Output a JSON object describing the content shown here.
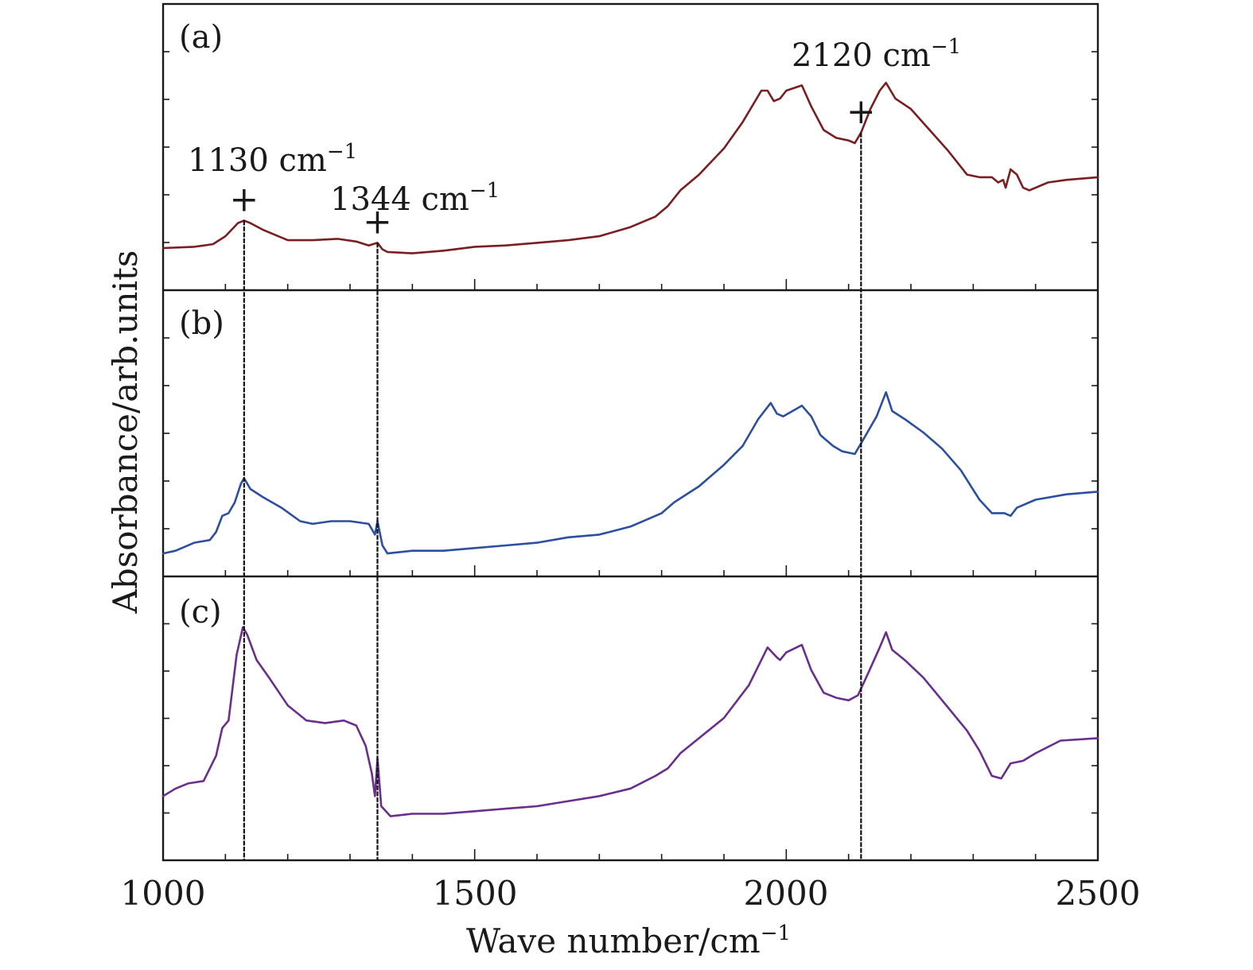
{
  "chart_data": {
    "type": "line",
    "xlabel": "Wave number/cm",
    "xlabel_superscript": "−1",
    "ylabel": "Absorbance/arb.units",
    "xlim": [
      1000,
      2500
    ],
    "x_ticks": [
      "1000",
      "1500",
      "2000",
      "2500"
    ],
    "panels": [
      {
        "label": "(a)",
        "name": "a",
        "color": "#7a1e22",
        "ylim": [
          0,
          1
        ],
        "points": [
          [
            1000,
            0.1
          ],
          [
            1050,
            0.105
          ],
          [
            1080,
            0.115
          ],
          [
            1090,
            0.13
          ],
          [
            1100,
            0.145
          ],
          [
            1110,
            0.17
          ],
          [
            1120,
            0.195
          ],
          [
            1130,
            0.205
          ],
          [
            1140,
            0.195
          ],
          [
            1160,
            0.17
          ],
          [
            1200,
            0.13
          ],
          [
            1240,
            0.13
          ],
          [
            1280,
            0.135
          ],
          [
            1310,
            0.125
          ],
          [
            1330,
            0.11
          ],
          [
            1344,
            0.12
          ],
          [
            1352,
            0.095
          ],
          [
            1360,
            0.085
          ],
          [
            1400,
            0.08
          ],
          [
            1450,
            0.09
          ],
          [
            1500,
            0.105
          ],
          [
            1550,
            0.11
          ],
          [
            1600,
            0.12
          ],
          [
            1650,
            0.13
          ],
          [
            1700,
            0.145
          ],
          [
            1750,
            0.18
          ],
          [
            1790,
            0.22
          ],
          [
            1810,
            0.26
          ],
          [
            1830,
            0.32
          ],
          [
            1860,
            0.38
          ],
          [
            1900,
            0.48
          ],
          [
            1930,
            0.58
          ],
          [
            1960,
            0.7
          ],
          [
            1970,
            0.7
          ],
          [
            1980,
            0.66
          ],
          [
            1990,
            0.67
          ],
          [
            2000,
            0.7
          ],
          [
            2025,
            0.72
          ],
          [
            2040,
            0.64
          ],
          [
            2060,
            0.55
          ],
          [
            2080,
            0.52
          ],
          [
            2100,
            0.51
          ],
          [
            2110,
            0.5
          ],
          [
            2120,
            0.54
          ],
          [
            2135,
            0.63
          ],
          [
            2150,
            0.7
          ],
          [
            2160,
            0.73
          ],
          [
            2175,
            0.67
          ],
          [
            2200,
            0.63
          ],
          [
            2230,
            0.55
          ],
          [
            2260,
            0.47
          ],
          [
            2290,
            0.38
          ],
          [
            2310,
            0.37
          ],
          [
            2330,
            0.37
          ],
          [
            2340,
            0.35
          ],
          [
            2348,
            0.36
          ],
          [
            2352,
            0.33
          ],
          [
            2360,
            0.4
          ],
          [
            2370,
            0.38
          ],
          [
            2380,
            0.33
          ],
          [
            2390,
            0.32
          ],
          [
            2420,
            0.35
          ],
          [
            2450,
            0.36
          ],
          [
            2500,
            0.37
          ]
        ]
      },
      {
        "label": "(b)",
        "name": "b",
        "color": "#2c4fa0",
        "ylim": [
          0,
          1
        ],
        "points": [
          [
            1000,
            0.05
          ],
          [
            1020,
            0.06
          ],
          [
            1050,
            0.09
          ],
          [
            1075,
            0.1
          ],
          [
            1085,
            0.13
          ],
          [
            1095,
            0.19
          ],
          [
            1105,
            0.2
          ],
          [
            1115,
            0.24
          ],
          [
            1125,
            0.31
          ],
          [
            1130,
            0.33
          ],
          [
            1140,
            0.29
          ],
          [
            1160,
            0.26
          ],
          [
            1190,
            0.22
          ],
          [
            1220,
            0.17
          ],
          [
            1240,
            0.16
          ],
          [
            1270,
            0.17
          ],
          [
            1300,
            0.17
          ],
          [
            1330,
            0.16
          ],
          [
            1340,
            0.12
          ],
          [
            1344,
            0.17
          ],
          [
            1352,
            0.08
          ],
          [
            1360,
            0.05
          ],
          [
            1400,
            0.06
          ],
          [
            1450,
            0.06
          ],
          [
            1500,
            0.07
          ],
          [
            1550,
            0.08
          ],
          [
            1600,
            0.09
          ],
          [
            1650,
            0.11
          ],
          [
            1700,
            0.12
          ],
          [
            1750,
            0.15
          ],
          [
            1800,
            0.2
          ],
          [
            1820,
            0.24
          ],
          [
            1860,
            0.3
          ],
          [
            1900,
            0.38
          ],
          [
            1930,
            0.45
          ],
          [
            1955,
            0.55
          ],
          [
            1975,
            0.61
          ],
          [
            1985,
            0.57
          ],
          [
            1995,
            0.56
          ],
          [
            2010,
            0.58
          ],
          [
            2025,
            0.6
          ],
          [
            2040,
            0.56
          ],
          [
            2055,
            0.49
          ],
          [
            2075,
            0.45
          ],
          [
            2090,
            0.43
          ],
          [
            2110,
            0.42
          ],
          [
            2125,
            0.48
          ],
          [
            2145,
            0.56
          ],
          [
            2160,
            0.65
          ],
          [
            2170,
            0.58
          ],
          [
            2190,
            0.55
          ],
          [
            2220,
            0.5
          ],
          [
            2250,
            0.44
          ],
          [
            2280,
            0.36
          ],
          [
            2310,
            0.25
          ],
          [
            2330,
            0.2
          ],
          [
            2350,
            0.2
          ],
          [
            2360,
            0.19
          ],
          [
            2370,
            0.22
          ],
          [
            2400,
            0.25
          ],
          [
            2450,
            0.27
          ],
          [
            2500,
            0.28
          ]
        ]
      },
      {
        "label": "(c)",
        "name": "c",
        "color": "#6a2e8c",
        "ylim": [
          0,
          1
        ],
        "points": [
          [
            1000,
            0.16
          ],
          [
            1020,
            0.19
          ],
          [
            1040,
            0.21
          ],
          [
            1065,
            0.22
          ],
          [
            1085,
            0.32
          ],
          [
            1095,
            0.43
          ],
          [
            1105,
            0.46
          ],
          [
            1118,
            0.72
          ],
          [
            1128,
            0.83
          ],
          [
            1135,
            0.8
          ],
          [
            1150,
            0.7
          ],
          [
            1170,
            0.63
          ],
          [
            1200,
            0.52
          ],
          [
            1230,
            0.46
          ],
          [
            1260,
            0.45
          ],
          [
            1290,
            0.46
          ],
          [
            1310,
            0.44
          ],
          [
            1325,
            0.36
          ],
          [
            1335,
            0.25
          ],
          [
            1340,
            0.16
          ],
          [
            1344,
            0.31
          ],
          [
            1350,
            0.12
          ],
          [
            1365,
            0.08
          ],
          [
            1400,
            0.09
          ],
          [
            1450,
            0.09
          ],
          [
            1500,
            0.1
          ],
          [
            1550,
            0.11
          ],
          [
            1600,
            0.12
          ],
          [
            1650,
            0.14
          ],
          [
            1700,
            0.16
          ],
          [
            1750,
            0.19
          ],
          [
            1790,
            0.24
          ],
          [
            1810,
            0.27
          ],
          [
            1830,
            0.33
          ],
          [
            1860,
            0.39
          ],
          [
            1900,
            0.47
          ],
          [
            1940,
            0.6
          ],
          [
            1970,
            0.75
          ],
          [
            1985,
            0.71
          ],
          [
            1990,
            0.7
          ],
          [
            2000,
            0.73
          ],
          [
            2025,
            0.76
          ],
          [
            2040,
            0.66
          ],
          [
            2060,
            0.57
          ],
          [
            2080,
            0.55
          ],
          [
            2100,
            0.54
          ],
          [
            2115,
            0.56
          ],
          [
            2130,
            0.64
          ],
          [
            2150,
            0.75
          ],
          [
            2160,
            0.81
          ],
          [
            2170,
            0.74
          ],
          [
            2190,
            0.7
          ],
          [
            2220,
            0.63
          ],
          [
            2250,
            0.54
          ],
          [
            2290,
            0.42
          ],
          [
            2310,
            0.34
          ],
          [
            2330,
            0.24
          ],
          [
            2345,
            0.23
          ],
          [
            2360,
            0.29
          ],
          [
            2380,
            0.3
          ],
          [
            2400,
            0.33
          ],
          [
            2440,
            0.38
          ],
          [
            2500,
            0.39
          ]
        ]
      }
    ],
    "markers": [
      {
        "x": 1130,
        "value": "1130",
        "unit": "cm",
        "superscript": "−1"
      },
      {
        "x": 1344,
        "value": "1344",
        "unit": "cm",
        "superscript": "−1"
      },
      {
        "x": 2120,
        "value": "2120",
        "unit": "cm",
        "superscript": "−1"
      }
    ]
  }
}
